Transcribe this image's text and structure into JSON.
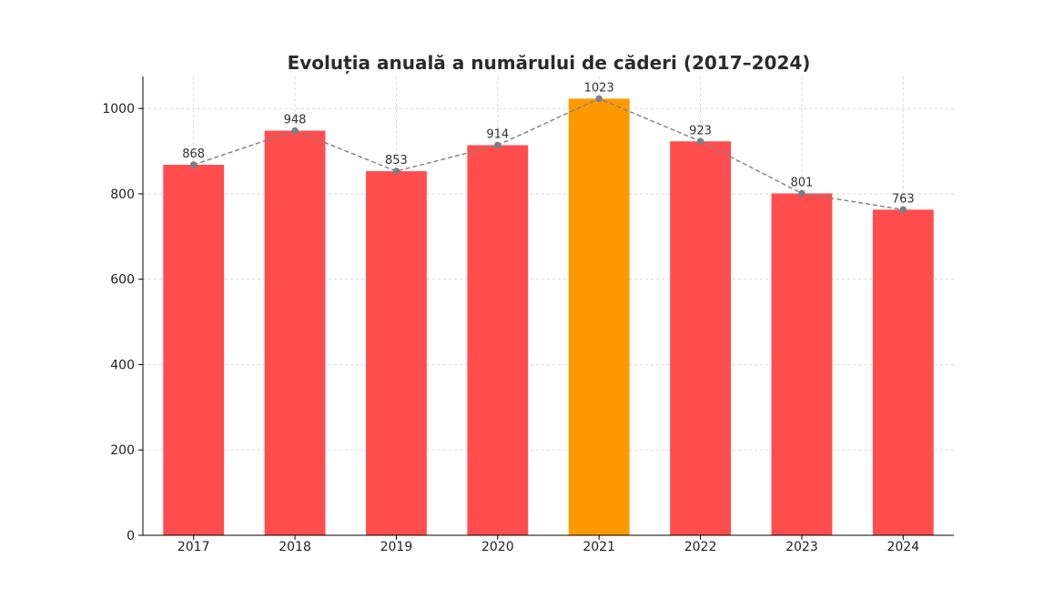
{
  "chart_data": {
    "type": "bar",
    "title": "Evoluția anuală a numărului de căderi (2017–2024)",
    "xlabel": "",
    "ylabel": "",
    "categories": [
      "2017",
      "2018",
      "2019",
      "2020",
      "2021",
      "2022",
      "2023",
      "2024"
    ],
    "values": [
      868,
      948,
      853,
      914,
      1023,
      923,
      801,
      763
    ],
    "data_labels": [
      "868",
      "948",
      "853",
      "914",
      "1023",
      "923",
      "801",
      "763"
    ],
    "ylim": [
      0,
      1075
    ],
    "yticks": [
      0,
      200,
      400,
      600,
      800,
      1000
    ],
    "ytick_labels": [
      "0",
      "200",
      "400",
      "600",
      "800",
      "1000"
    ],
    "highlight_category": "2021",
    "overlay": "dashed line with markers connecting bar tops",
    "grid": true,
    "colors": {
      "bar": "#ff4d4d",
      "highlight_bar": "#ff9900",
      "line": "#808080",
      "marker": "#7a7f87",
      "grid": "#d0d0d0",
      "axis": "#000000"
    }
  }
}
